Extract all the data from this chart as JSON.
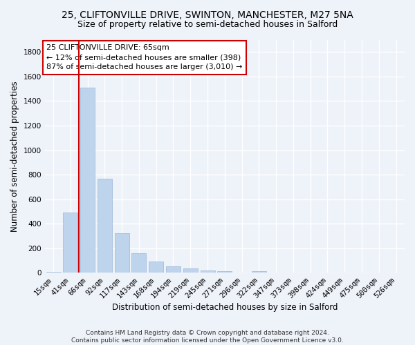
{
  "title_line1": "25, CLIFTONVILLE DRIVE, SWINTON, MANCHESTER, M27 5NA",
  "title_line2": "Size of property relative to semi-detached houses in Salford",
  "xlabel": "Distribution of semi-detached houses by size in Salford",
  "ylabel": "Number of semi-detached properties",
  "footnote": "Contains HM Land Registry data © Crown copyright and database right 2024.\nContains public sector information licensed under the Open Government Licence v3.0.",
  "categories": [
    "15sqm",
    "41sqm",
    "66sqm",
    "92sqm",
    "117sqm",
    "143sqm",
    "168sqm",
    "194sqm",
    "219sqm",
    "245sqm",
    "271sqm",
    "296sqm",
    "322sqm",
    "347sqm",
    "373sqm",
    "398sqm",
    "424sqm",
    "449sqm",
    "475sqm",
    "500sqm",
    "526sqm"
  ],
  "values": [
    10,
    490,
    1510,
    770,
    325,
    160,
    90,
    55,
    35,
    20,
    15,
    0,
    15,
    0,
    0,
    0,
    0,
    0,
    0,
    0,
    0
  ],
  "bar_color": "#bdd4ec",
  "bar_edgecolor": "#9ab8d8",
  "property_line_index": 2,
  "annotation_text": "25 CLIFTONVILLE DRIVE: 65sqm\n← 12% of semi-detached houses are smaller (398)\n87% of semi-detached houses are larger (3,010) →",
  "annotation_box_color": "#ffffff",
  "annotation_box_edgecolor": "#cc0000",
  "property_line_color": "#cc0000",
  "ylim": [
    0,
    1900
  ],
  "yticks": [
    0,
    200,
    400,
    600,
    800,
    1000,
    1200,
    1400,
    1600,
    1800
  ],
  "background_color": "#eef2f9",
  "grid_color": "#ffffff",
  "title_fontsize": 10,
  "subtitle_fontsize": 9,
  "axis_label_fontsize": 8.5,
  "tick_fontsize": 7.5,
  "annotation_fontsize": 8,
  "footnote_fontsize": 6.5
}
